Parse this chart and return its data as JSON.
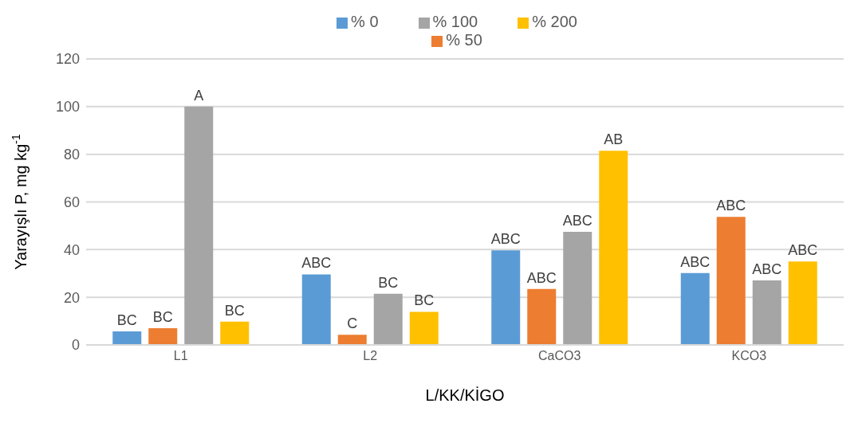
{
  "chart_data": {
    "type": "bar",
    "xlabel": "L/KK/KİGO",
    "ylabel": "Yarayışlı P, mg kg$^{-1}$",
    "categories": [
      "L1",
      "L2",
      "CaCO3",
      "KCO3"
    ],
    "series": [
      {
        "name": "% 0",
        "color": "#5b9bd5",
        "values": [
          5.7,
          29.6,
          39.7,
          30.2
        ],
        "value_labels": [
          "BC",
          "ABC",
          "ABC",
          "ABC"
        ]
      },
      {
        "name": "% 50",
        "color": "#ed7d31",
        "values": [
          7,
          4.3,
          23.5,
          53.7
        ],
        "value_labels": [
          "BC",
          "C",
          "ABC",
          "ABC"
        ]
      },
      {
        "name": "% 100",
        "color": "#a5a5a5",
        "values": [
          100,
          21.5,
          47.5,
          27.1
        ],
        "value_labels": [
          "A",
          "BC",
          "ABC",
          "ABC"
        ]
      },
      {
        "name": "% 200",
        "color": "#ffc000",
        "values": [
          9.8,
          13.9,
          81.5,
          35
        ],
        "value_labels": [
          "BC",
          "BC",
          "AB",
          "ABC"
        ]
      }
    ],
    "ylim": [
      0,
      120
    ],
    "yticks": [
      0,
      20,
      40,
      60,
      80,
      100,
      120
    ],
    "grid": "y",
    "legend": "top"
  }
}
